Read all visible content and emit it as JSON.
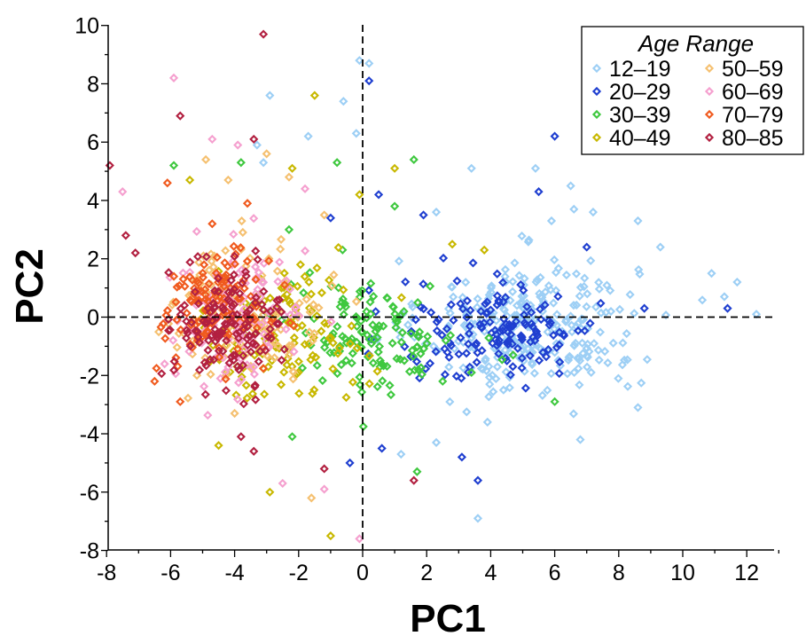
{
  "chart_data": {
    "type": "scatter",
    "xlabel": "PC1",
    "ylabel": "PC2",
    "xlim": [
      -8,
      13
    ],
    "ylim": [
      -8,
      10
    ],
    "xticks": [
      "-8",
      "-6",
      "-4",
      "-2",
      "0",
      "2",
      "4",
      "6",
      "8",
      "10",
      "12"
    ],
    "yticks": [
      "-8",
      "-6",
      "-4",
      "-2",
      "0",
      "2",
      "4",
      "6",
      "8",
      "10"
    ],
    "reference_lines": {
      "x": 0,
      "y": 0,
      "style": "dashed"
    },
    "marker": "open-diamond",
    "grid": false,
    "legend": {
      "title": "Age Range",
      "position": "top-right"
    },
    "series": [
      {
        "name": "12–19",
        "color": "#9dcff5",
        "centroid": [
          5.2,
          -0.3
        ],
        "spread": [
          2.8,
          1.9
        ],
        "count": 290,
        "points": [
          [
            -0.1,
            8.8
          ],
          [
            0.2,
            8.7
          ],
          [
            -2.9,
            7.6
          ],
          [
            -0.6,
            7.4
          ],
          [
            -1.7,
            6.2
          ],
          [
            -0.2,
            6.3
          ],
          [
            -3.3,
            5.9
          ],
          [
            -3.1,
            5.3
          ],
          [
            2.3,
            3.6
          ],
          [
            5.9,
            3.3
          ],
          [
            5.4,
            5.1
          ],
          [
            3.4,
            5.1
          ],
          [
            6.6,
            3.7
          ],
          [
            7.2,
            3.6
          ],
          [
            8.6,
            3.3
          ],
          [
            9.3,
            2.4
          ],
          [
            10.9,
            1.5
          ],
          [
            11.7,
            1.2
          ],
          [
            11.3,
            0.7
          ],
          [
            12.3,
            0.1
          ],
          [
            3.6,
            -6.9
          ],
          [
            8.6,
            -3.1
          ],
          [
            6.8,
            -4.2
          ],
          [
            3.9,
            -3.6
          ],
          [
            2.3,
            -4.3
          ],
          [
            4.4,
            -2.5
          ],
          [
            1.2,
            -4.7
          ],
          [
            6.5,
            4.5
          ]
        ]
      },
      {
        "name": "20–29",
        "color": "#1f3fd0",
        "centroid": [
          4.2,
          -0.5
        ],
        "spread": [
          2.6,
          1.5
        ],
        "count": 150,
        "points": [
          [
            0.2,
            8.1
          ],
          [
            6.0,
            6.2
          ],
          [
            5.5,
            4.3
          ],
          [
            0.5,
            4.2
          ],
          [
            1.9,
            3.5
          ],
          [
            -1.0,
            3.4
          ],
          [
            7.0,
            2.4
          ],
          [
            11.4,
            0.3
          ],
          [
            8.8,
            0.3
          ],
          [
            3.1,
            -4.8
          ],
          [
            3.6,
            -5.6
          ],
          [
            -0.4,
            -5.0
          ],
          [
            0.6,
            -4.5
          ]
        ]
      },
      {
        "name": "30–39",
        "color": "#3fc83f",
        "centroid": [
          0.3,
          -0.6
        ],
        "spread": [
          2.3,
          1.6
        ],
        "count": 130,
        "points": [
          [
            -5.9,
            5.2
          ],
          [
            -3.8,
            5.3
          ],
          [
            -0.8,
            5.3
          ],
          [
            1.6,
            5.4
          ],
          [
            1.0,
            3.8
          ],
          [
            -2.3,
            3.0
          ],
          [
            2.5,
            -2.2
          ],
          [
            6.0,
            -2.9
          ],
          [
            1.7,
            -5.3
          ],
          [
            -2.2,
            -4.1
          ],
          [
            3.4,
            -1.9
          ],
          [
            4.7,
            -1.3
          ]
        ]
      },
      {
        "name": "40–49",
        "color": "#c8b800",
        "centroid": [
          -2.6,
          -0.5
        ],
        "spread": [
          2.2,
          1.9
        ],
        "count": 130,
        "points": [
          [
            -1.5,
            7.6
          ],
          [
            -2.2,
            5.1
          ],
          [
            -5.4,
            4.7
          ],
          [
            1.0,
            5.1
          ],
          [
            -1.0,
            -7.5
          ],
          [
            -2.9,
            -6.0
          ],
          [
            -4.5,
            -4.4
          ],
          [
            -0.1,
            4.2
          ],
          [
            3.8,
            2.3
          ],
          [
            2.8,
            2.5
          ]
        ]
      },
      {
        "name": "50–59",
        "color": "#f5c070",
        "centroid": [
          -3.6,
          0.2
        ],
        "spread": [
          2.0,
          2.0
        ],
        "count": 120,
        "points": [
          [
            -4.9,
            5.4
          ],
          [
            -3.0,
            5.6
          ],
          [
            -2.3,
            4.8
          ],
          [
            -4.2,
            4.7
          ],
          [
            -1.6,
            -6.2
          ],
          [
            -4.0,
            -3.3
          ],
          [
            -1.2,
            3.5
          ]
        ]
      },
      {
        "name": "60–69",
        "color": "#f5a0cf",
        "centroid": [
          -3.8,
          0.0
        ],
        "spread": [
          1.8,
          2.0
        ],
        "count": 120,
        "points": [
          [
            -5.9,
            8.2
          ],
          [
            -4.7,
            6.1
          ],
          [
            -3.9,
            5.9
          ],
          [
            -7.5,
            4.3
          ],
          [
            -1.8,
            4.4
          ],
          [
            -0.1,
            -7.6
          ],
          [
            -1.2,
            -5.9
          ],
          [
            -2.5,
            -5.7
          ]
        ]
      },
      {
        "name": "70–79",
        "color": "#f05a1e",
        "centroid": [
          -4.6,
          0.3
        ],
        "spread": [
          1.4,
          1.5
        ],
        "count": 130,
        "points": [
          [
            -6.1,
            4.6
          ],
          [
            -6.5,
            -2.2
          ],
          [
            -5.7,
            -2.9
          ],
          [
            -3.6,
            3.9
          ],
          [
            -4.7,
            3.2
          ]
        ]
      },
      {
        "name": "80–85",
        "color": "#b22040",
        "centroid": [
          -4.2,
          -0.2
        ],
        "spread": [
          1.4,
          1.7
        ],
        "count": 140,
        "points": [
          [
            -3.1,
            9.7
          ],
          [
            -5.7,
            6.9
          ],
          [
            -3.4,
            6.1
          ],
          [
            -7.9,
            5.2
          ],
          [
            -7.1,
            2.2
          ],
          [
            -1.2,
            -5.2
          ],
          [
            1.6,
            -5.6
          ],
          [
            -3.4,
            -4.6
          ],
          [
            -3.8,
            -4.1
          ],
          [
            -7.4,
            2.8
          ]
        ]
      }
    ]
  }
}
